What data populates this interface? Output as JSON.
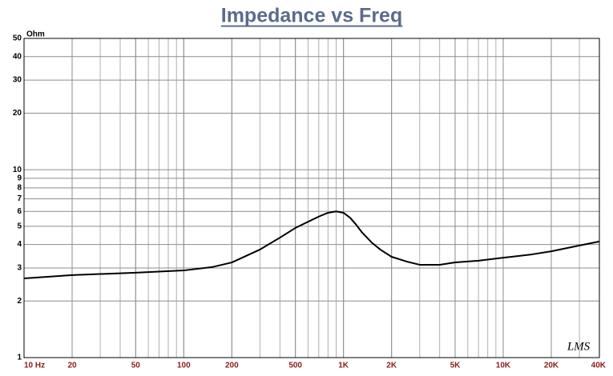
{
  "chart_data": {
    "type": "line",
    "title": "Impedance vs Freq",
    "y_label": "Ohm",
    "watermark": "LMS",
    "xscale": "log",
    "yscale": "log",
    "grid": true,
    "minor_grid": true,
    "xlim": [
      10,
      40000
    ],
    "ylim": [
      1,
      50
    ],
    "xticks": [
      {
        "value": 10,
        "label": "10 Hz"
      },
      20,
      50,
      100,
      200,
      500,
      {
        "value": 1000,
        "label": "1K"
      },
      {
        "value": 2000,
        "label": "2K"
      },
      {
        "value": 5000,
        "label": "5K"
      },
      {
        "value": 10000,
        "label": "10K"
      },
      {
        "value": 20000,
        "label": "20K"
      },
      {
        "value": 40000,
        "label": "40K"
      }
    ],
    "yticks": [
      1,
      2,
      3,
      4,
      5,
      6,
      7,
      8,
      9,
      10,
      20,
      30,
      40,
      50
    ],
    "color": "#000000",
    "x": [
      10,
      20,
      50,
      100,
      150,
      200,
      300,
      400,
      500,
      700,
      800,
      900,
      1000,
      1100,
      1200,
      1300,
      1500,
      1700,
      2000,
      2500,
      3000,
      4000,
      5000,
      7000,
      10000,
      15000,
      20000,
      30000,
      40000
    ],
    "values": [
      2.64,
      2.75,
      2.83,
      2.91,
      3.03,
      3.21,
      3.76,
      4.35,
      4.9,
      5.63,
      5.9,
      6.0,
      5.9,
      5.55,
      5.1,
      4.66,
      4.1,
      3.76,
      3.44,
      3.24,
      3.12,
      3.12,
      3.21,
      3.28,
      3.4,
      3.54,
      3.68,
      3.95,
      4.15
    ]
  }
}
